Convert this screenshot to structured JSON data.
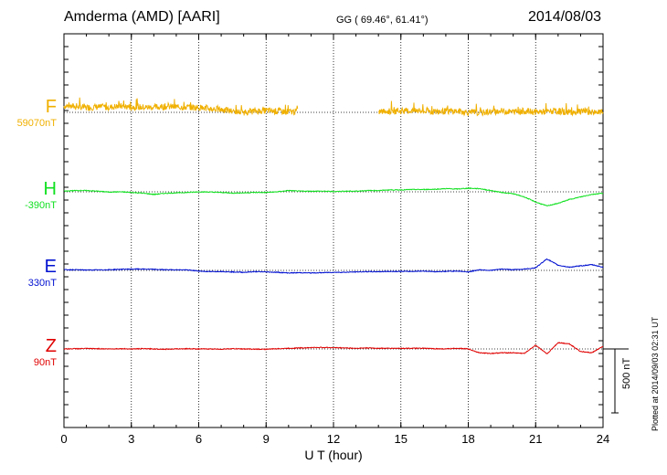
{
  "header": {
    "station": "Amderma (AMD)  [AARI]",
    "coords": "GG ( 69.46°,  61.41°)",
    "date": "2014/08/03"
  },
  "footer": {
    "plotted": "Plotted at 2014/09/03 02:31  UT"
  },
  "scale": {
    "label": "500 nT",
    "nT": 500
  },
  "colors": {
    "F": "#f0b000",
    "H": "#10e020",
    "E": "#0010d0",
    "Z": "#e00000"
  },
  "chart_data": {
    "type": "line",
    "title": "Amderma (AMD)  [AARI]",
    "xlabel": "U T (hour)",
    "ylabel": "",
    "xlim": [
      0,
      24
    ],
    "x_ticks": [
      0,
      3,
      6,
      9,
      12,
      15,
      18,
      21,
      24
    ],
    "x_tick_labels": [
      "0",
      "3",
      "6",
      "9",
      "12",
      "15",
      "18",
      "21",
      "24"
    ],
    "grid": true,
    "units_note": "each series is offset from its baseline value (nT); positive = upward",
    "series": [
      {
        "name": "F",
        "baseline_label": "59070nT",
        "baseline_nT": 59070,
        "noise_nT": 25,
        "gap_hours": [
          [
            10.4,
            14.0
          ]
        ],
        "x": [
          0,
          0.5,
          1,
          1.5,
          2,
          2.5,
          3,
          3.5,
          4,
          4.5,
          5,
          5.5,
          6,
          6.5,
          7,
          7.5,
          8,
          8.5,
          9,
          9.5,
          10,
          10.3,
          14.0,
          14.5,
          15,
          15.5,
          16,
          16.5,
          17,
          17.5,
          18,
          18.5,
          19,
          19.5,
          20,
          20.5,
          21,
          21.5,
          22,
          22.5,
          23,
          23.5,
          24
        ],
        "values": [
          50,
          45,
          38,
          42,
          40,
          48,
          42,
          40,
          38,
          45,
          42,
          40,
          38,
          28,
          22,
          8,
          0,
          10,
          15,
          8,
          5,
          5,
          5,
          8,
          10,
          12,
          8,
          5,
          8,
          10,
          0,
          -5,
          5,
          8,
          5,
          10,
          2,
          5,
          8,
          2,
          5,
          3,
          0
        ]
      },
      {
        "name": "H",
        "baseline_label": "-390nT",
        "baseline_nT": -390,
        "noise_nT": 3,
        "gap_hours": [],
        "x": [
          0,
          0.5,
          1,
          1.5,
          2,
          2.5,
          3,
          3.5,
          4,
          4.5,
          5,
          5.5,
          6,
          6.5,
          7,
          7.5,
          8,
          8.5,
          9,
          9.5,
          10,
          10.5,
          11,
          11.5,
          12,
          12.5,
          13,
          13.5,
          14,
          14.5,
          15,
          15.5,
          16,
          16.5,
          17,
          17.5,
          18,
          18.5,
          19,
          19.5,
          20,
          20.5,
          21,
          21.5,
          22,
          22.5,
          23,
          23.5,
          24
        ],
        "values": [
          5,
          10,
          10,
          5,
          -2,
          0,
          -5,
          -10,
          -20,
          -12,
          -8,
          -5,
          0,
          -2,
          -5,
          -10,
          -8,
          -5,
          -5,
          0,
          10,
          5,
          5,
          5,
          2,
          5,
          5,
          10,
          10,
          15,
          15,
          18,
          18,
          20,
          25,
          22,
          28,
          25,
          10,
          -5,
          -15,
          -40,
          -80,
          -110,
          -90,
          -60,
          -40,
          -20,
          -10
        ]
      },
      {
        "name": "E",
        "baseline_label": "330nT",
        "baseline_nT": 330,
        "noise_nT": 3,
        "gap_hours": [],
        "x": [
          0,
          0.5,
          1,
          1.5,
          2,
          2.5,
          3,
          3.5,
          4,
          4.5,
          5,
          5.5,
          6,
          6.5,
          7,
          7.5,
          8,
          8.5,
          9,
          9.5,
          10,
          10.5,
          11,
          11.5,
          12,
          12.5,
          13,
          13.5,
          14,
          14.5,
          15,
          15.5,
          16,
          16.5,
          17,
          17.5,
          18,
          18.5,
          19,
          19.5,
          20,
          20.5,
          21,
          21.5,
          22,
          22.5,
          23,
          23.5,
          24
        ],
        "values": [
          5,
          5,
          3,
          3,
          5,
          8,
          10,
          10,
          8,
          5,
          5,
          3,
          -5,
          -10,
          -8,
          -12,
          -15,
          -10,
          -12,
          -15,
          -20,
          -18,
          -20,
          -18,
          -15,
          -15,
          -12,
          -10,
          -10,
          -8,
          -8,
          -8,
          -5,
          -10,
          -8,
          -5,
          -12,
          5,
          0,
          10,
          5,
          10,
          20,
          90,
          40,
          25,
          35,
          45,
          25
        ]
      },
      {
        "name": "Z",
        "baseline_label": "90nT",
        "baseline_nT": 90,
        "noise_nT": 3,
        "gap_hours": [],
        "x": [
          0,
          0.5,
          1,
          1.5,
          2,
          2.5,
          3,
          3.5,
          4,
          4.5,
          5,
          5.5,
          6,
          6.5,
          7,
          7.5,
          8,
          8.5,
          9,
          9.5,
          10,
          10.5,
          11,
          11.5,
          12,
          12.5,
          13,
          13.5,
          14,
          14.5,
          15,
          15.5,
          16,
          16.5,
          17,
          17.5,
          18,
          18.5,
          19,
          19.5,
          20,
          20.5,
          21,
          21.5,
          22,
          22.5,
          23,
          23.5,
          24
        ],
        "values": [
          0,
          2,
          3,
          2,
          0,
          2,
          0,
          2,
          0,
          -2,
          0,
          2,
          0,
          0,
          -2,
          2,
          0,
          -2,
          -2,
          2,
          5,
          8,
          10,
          12,
          10,
          8,
          5,
          8,
          5,
          5,
          5,
          5,
          5,
          2,
          0,
          5,
          0,
          -30,
          -35,
          -30,
          -30,
          -35,
          30,
          -40,
          50,
          40,
          -20,
          -30,
          20
        ]
      }
    ]
  }
}
